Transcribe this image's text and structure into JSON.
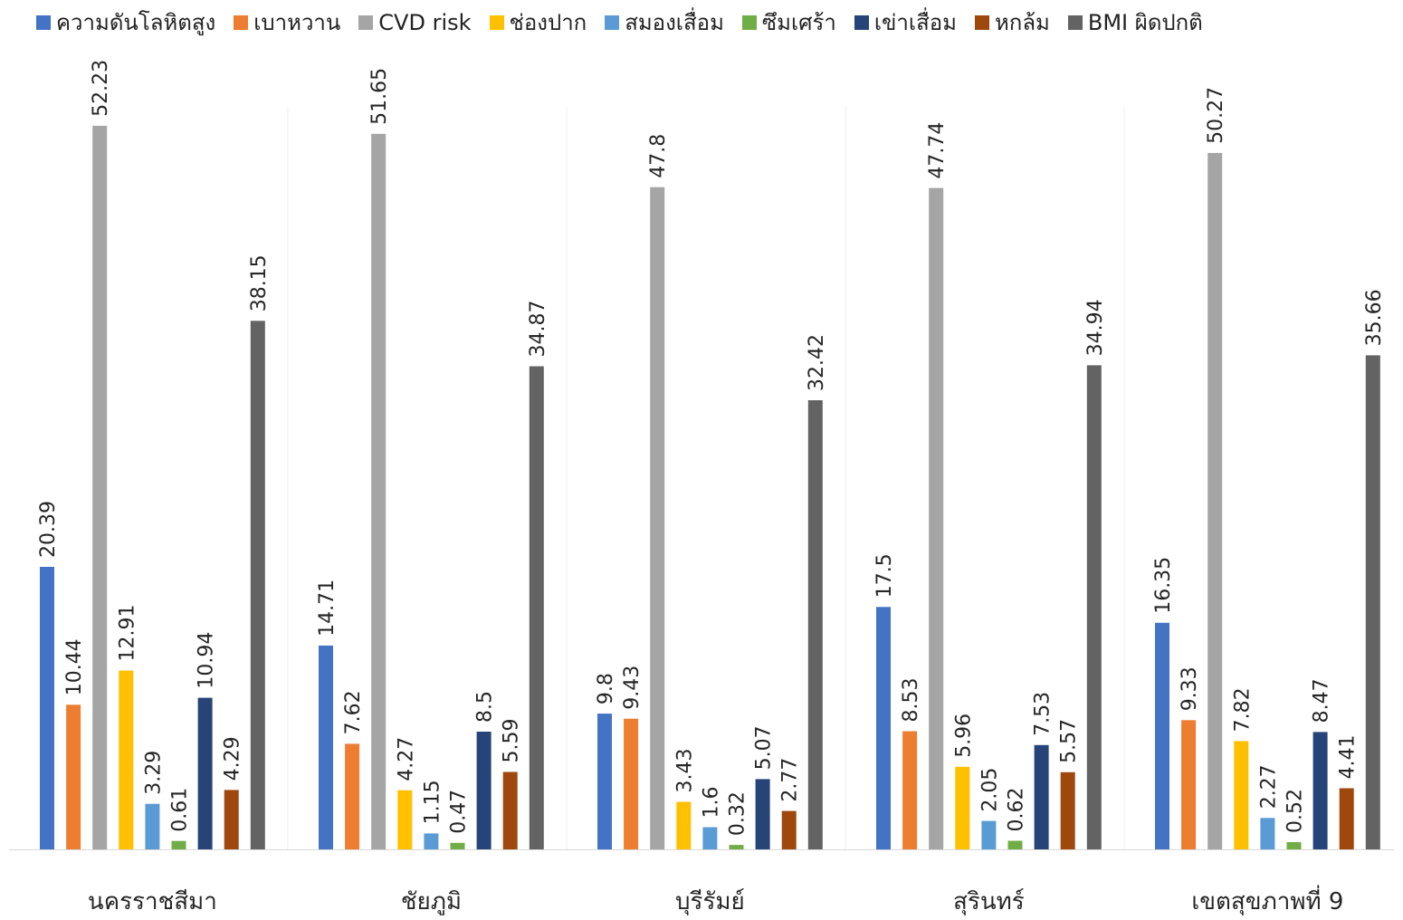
{
  "chart_data": {
    "type": "bar",
    "categories": [
      "นครราชสีมา",
      "ชัยภูมิ",
      "บุรีรัมย์",
      "สุรินทร์",
      "เขตสุขภาพที่ 9"
    ],
    "series": [
      {
        "name": "ความดันโลหิตสูง",
        "color": "#4472C4",
        "values": [
          20.39,
          14.71,
          9.8,
          17.5,
          16.35
        ]
      },
      {
        "name": "เบาหวาน",
        "color": "#ED7D31",
        "values": [
          10.44,
          7.62,
          9.43,
          8.53,
          9.33
        ]
      },
      {
        "name": "CVD risk",
        "color": "#A5A5A5",
        "values": [
          52.23,
          51.65,
          47.8,
          47.74,
          50.27
        ]
      },
      {
        "name": "ช่องปาก",
        "color": "#FFC000",
        "values": [
          12.91,
          4.27,
          3.43,
          5.96,
          7.82
        ]
      },
      {
        "name": "สมองเสื่อม",
        "color": "#5B9BD5",
        "values": [
          3.29,
          1.15,
          1.6,
          2.05,
          2.27
        ]
      },
      {
        "name": "ซึมเศร้า",
        "color": "#70AD47",
        "values": [
          0.61,
          0.47,
          0.32,
          0.62,
          0.52
        ]
      },
      {
        "name": "เข่าเสื่อม",
        "color": "#264478",
        "values": [
          10.94,
          8.5,
          5.07,
          7.53,
          8.47
        ]
      },
      {
        "name": "หกล้ม",
        "color": "#9E480E",
        "values": [
          4.29,
          5.59,
          2.77,
          5.57,
          4.41
        ]
      },
      {
        "name": "BMI ผิดปกติ",
        "color": "#636363",
        "values": [
          38.15,
          34.87,
          32.42,
          34.94,
          35.66
        ]
      }
    ],
    "ylim": [
      0,
      60
    ],
    "grid": false,
    "legend_position": "top",
    "data_labels": true
  }
}
